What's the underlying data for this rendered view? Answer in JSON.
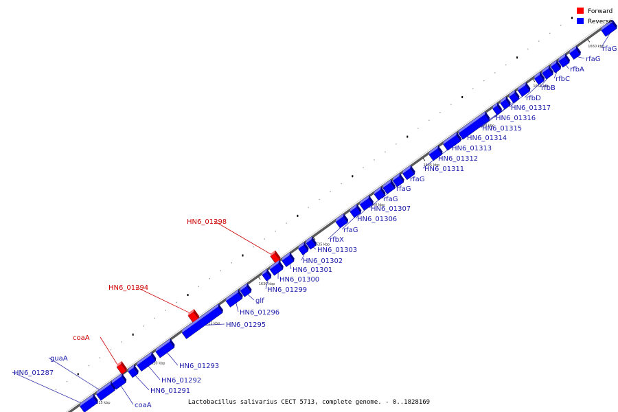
{
  "caption": "Lactobacillus salivarius CECT 5713, complete genome. - 0..1828169",
  "legend": {
    "forward": "Forward",
    "reverse": "Reverse",
    "forward_color": "#ff0000",
    "reverse_color": "#0000ff"
  },
  "colors": {
    "forward_label": "#cc0000",
    "reverse_label": "#1a1aaa",
    "axis": "#999999",
    "leader": "#3333aa"
  },
  "ticks": [
    "1615 kbp",
    "1620 kbp",
    "1625 kbp",
    "1630 kbp",
    "1635 kbp",
    "1640 kbp",
    "1645 kbp",
    "1650 kbp",
    "1655 kbp",
    "1660 kbp"
  ],
  "genes": [
    {
      "label": "HN6_01287",
      "strand": "reverse"
    },
    {
      "label": "guaA",
      "strand": "reverse"
    },
    {
      "label": "coaA",
      "strand": "forward"
    },
    {
      "label": "coaA",
      "strand": "reverse"
    },
    {
      "label": "HN6_01291",
      "strand": "reverse"
    },
    {
      "label": "HN6_01292",
      "strand": "reverse"
    },
    {
      "label": "HN6_01293",
      "strand": "reverse"
    },
    {
      "label": "HN6_01294",
      "strand": "forward"
    },
    {
      "label": "HN6_01295",
      "strand": "reverse"
    },
    {
      "label": "HN6_01296",
      "strand": "reverse"
    },
    {
      "label": "glf",
      "strand": "reverse"
    },
    {
      "label": "HN6_01298",
      "strand": "forward"
    },
    {
      "label": "HN6_01299",
      "strand": "reverse"
    },
    {
      "label": "HN6_01300",
      "strand": "reverse"
    },
    {
      "label": "HN6_01301",
      "strand": "reverse"
    },
    {
      "label": "HN6_01302",
      "strand": "reverse"
    },
    {
      "label": "HN6_01303",
      "strand": "reverse"
    },
    {
      "label": "rfbX",
      "strand": "reverse"
    },
    {
      "label": "rfaG",
      "strand": "reverse"
    },
    {
      "label": "HN6_01306",
      "strand": "reverse"
    },
    {
      "label": "HN6_01307",
      "strand": "reverse"
    },
    {
      "label": "rfaG",
      "strand": "reverse"
    },
    {
      "label": "rfaG",
      "strand": "reverse"
    },
    {
      "label": "rfaG",
      "strand": "reverse"
    },
    {
      "label": "HN6_01311",
      "strand": "reverse"
    },
    {
      "label": "HN6_01312",
      "strand": "reverse"
    },
    {
      "label": "HN6_01313",
      "strand": "reverse"
    },
    {
      "label": "HN6_01314",
      "strand": "reverse"
    },
    {
      "label": "HN6_01315",
      "strand": "reverse"
    },
    {
      "label": "HN6_01316",
      "strand": "reverse"
    },
    {
      "label": "HN6_01317",
      "strand": "reverse"
    },
    {
      "label": "rfbD",
      "strand": "reverse"
    },
    {
      "label": "rfbB",
      "strand": "reverse"
    },
    {
      "label": "rfbC",
      "strand": "reverse"
    },
    {
      "label": "rfbA",
      "strand": "reverse"
    },
    {
      "label": "rfaG",
      "strand": "reverse"
    },
    {
      "label": "rfaG",
      "strand": "reverse"
    }
  ]
}
